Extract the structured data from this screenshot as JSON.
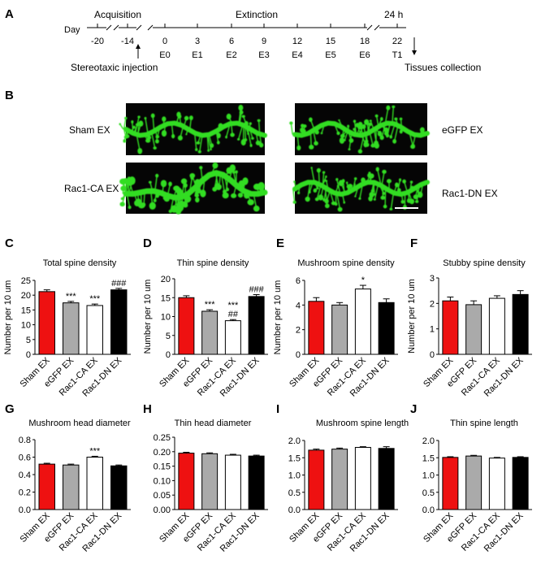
{
  "panel_letters": [
    "A",
    "B",
    "C",
    "D",
    "E",
    "F",
    "G",
    "H",
    "I",
    "J"
  ],
  "timeline": {
    "day_label": "Day",
    "acquisition_label": "Acquisition",
    "extinction_label": "Extinction",
    "hours_label": "24 h",
    "day_ticks": [
      "-20",
      "-14",
      "0",
      "3",
      "6",
      "9",
      "12",
      "15",
      "18",
      "22"
    ],
    "session_labels": [
      "E0",
      "E1",
      "E2",
      "E3",
      "E4",
      "E5",
      "E6",
      "T1"
    ],
    "injection_label": "Stereotaxic injection",
    "tissue_label": "Tissues collection"
  },
  "micrographs": {
    "labels": [
      "Sham EX",
      "eGFP EX",
      "Rac1-CA EX",
      "Rac1-DN EX"
    ],
    "image_color": "#33dd22",
    "background_color": "#050505"
  },
  "colors": {
    "Sham EX": "#ee1111",
    "eGFP EX": "#aaaaaa",
    "Rac1-CA EX": "#ffffff",
    "Rac1-DN EX": "#000000"
  },
  "chart_data": [
    {
      "panel": "C",
      "type": "bar",
      "title": "Total spine density",
      "ylabel": "Number per 10 um",
      "categories": [
        "Sham EX",
        "eGFP EX",
        "Rac1-CA EX",
        "Rac1-DN EX"
      ],
      "values": [
        21.2,
        17.4,
        16.5,
        21.8
      ],
      "errors": [
        0.6,
        0.5,
        0.5,
        0.5
      ],
      "ylim": [
        0,
        25
      ],
      "yticks": [
        "0",
        "5",
        "10",
        "15",
        "20",
        "25"
      ],
      "annotations": [
        "",
        "***",
        "***",
        "###"
      ]
    },
    {
      "panel": "D",
      "type": "bar",
      "title": "Thin spine density",
      "ylabel": "Number per 10 um",
      "categories": [
        "Sham EX",
        "eGFP EX",
        "Rac1-CA EX",
        "Rac1-DN EX"
      ],
      "values": [
        15.0,
        11.4,
        8.9,
        15.3
      ],
      "errors": [
        0.5,
        0.4,
        0.3,
        0.5
      ],
      "ylim": [
        0,
        20
      ],
      "yticks": [
        "0",
        "5",
        "10",
        "15",
        "20"
      ],
      "annotations": [
        "",
        "***",
        "***\n##",
        "###"
      ]
    },
    {
      "panel": "E",
      "type": "bar",
      "title": "Mushroom spine density",
      "ylabel": "Number per 10 um",
      "categories": [
        "Sham EX",
        "eGFP EX",
        "Rac1-CA EX",
        "Rac1-DN EX"
      ],
      "values": [
        4.3,
        4.0,
        5.3,
        4.2
      ],
      "errors": [
        0.3,
        0.2,
        0.3,
        0.3
      ],
      "ylim": [
        0,
        6
      ],
      "yticks": [
        "0",
        "2",
        "4",
        "6"
      ],
      "annotations": [
        "",
        "",
        "*",
        ""
      ]
    },
    {
      "panel": "F",
      "type": "bar",
      "title": "Stubby spine density",
      "ylabel": "Number per 10 um",
      "categories": [
        "Sham EX",
        "eGFP EX",
        "Rac1-CA EX",
        "Rac1-DN EX"
      ],
      "values": [
        2.1,
        1.95,
        2.2,
        2.35
      ],
      "errors": [
        0.15,
        0.15,
        0.1,
        0.15
      ],
      "ylim": [
        0,
        3
      ],
      "yticks": [
        "0",
        "1",
        "2",
        "3"
      ],
      "annotations": [
        "",
        "",
        "",
        ""
      ]
    },
    {
      "panel": "G",
      "type": "bar",
      "title": "Mushroom head diameter",
      "ylabel": "",
      "categories": [
        "Sham EX",
        "eGFP EX",
        "Rac1-CA EX",
        "Rac1-DN EX"
      ],
      "values": [
        0.52,
        0.51,
        0.6,
        0.5
      ],
      "errors": [
        0.01,
        0.01,
        0.01,
        0.01
      ],
      "ylim": [
        0,
        0.8
      ],
      "yticks": [
        "0.0",
        "0.2",
        "0.4",
        "0.6",
        "0.8"
      ],
      "annotations": [
        "",
        "",
        "***",
        ""
      ]
    },
    {
      "panel": "H",
      "type": "bar",
      "title": "Thin head diameter",
      "ylabel": "",
      "categories": [
        "Sham EX",
        "eGFP EX",
        "Rac1-CA EX",
        "Rac1-DN EX"
      ],
      "values": [
        0.195,
        0.193,
        0.188,
        0.185
      ],
      "errors": [
        0.003,
        0.003,
        0.003,
        0.003
      ],
      "ylim": [
        0,
        0.25
      ],
      "yticks": [
        "0.00",
        "0.05",
        "0.10",
        "0.15",
        "0.20",
        "0.25"
      ],
      "annotations": [
        "",
        "",
        "",
        ""
      ]
    },
    {
      "panel": "I",
      "type": "bar",
      "title": "Mushroom spine length",
      "ylabel": "",
      "categories": [
        "Sham EX",
        "eGFP EX",
        "Rac1-CA EX",
        "Rac1-DN EX"
      ],
      "values": [
        1.72,
        1.75,
        1.8,
        1.77
      ],
      "errors": [
        0.03,
        0.03,
        0.02,
        0.05
      ],
      "ylim": [
        0,
        2.0
      ],
      "yticks": [
        "0.0",
        "0.5",
        "1.0",
        "1.5",
        "2.0"
      ],
      "annotations": [
        "",
        "",
        "",
        ""
      ]
    },
    {
      "panel": "J",
      "type": "bar",
      "title": "Thin spine length",
      "ylabel": "",
      "categories": [
        "Sham EX",
        "eGFP EX",
        "Rac1-CA EX",
        "Rac1-DN EX"
      ],
      "values": [
        1.51,
        1.55,
        1.49,
        1.51
      ],
      "errors": [
        0.02,
        0.02,
        0.02,
        0.02
      ],
      "ylim": [
        0,
        2.0
      ],
      "yticks": [
        "0.0",
        "0.5",
        "1.0",
        "1.5",
        "2.0"
      ],
      "annotations": [
        "",
        "",
        "",
        ""
      ]
    }
  ]
}
